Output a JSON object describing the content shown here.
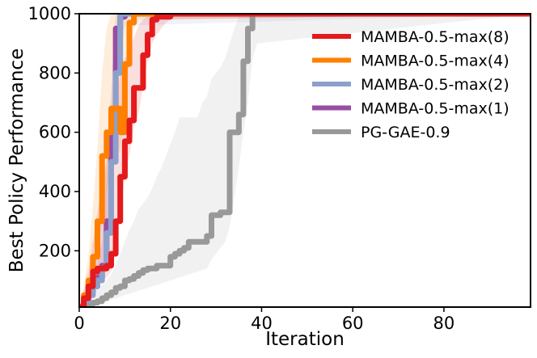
{
  "chart_data": {
    "type": "line",
    "title": "",
    "xlabel": "Iteration",
    "ylabel": "Best Policy Performance",
    "xlim": [
      0,
      99
    ],
    "ylim": [
      10,
      1000
    ],
    "xticks": [
      0,
      20,
      40,
      60,
      80
    ],
    "yticks": [
      200,
      400,
      600,
      800,
      1000
    ],
    "grid": false,
    "legend_position": "top-right",
    "series": [
      {
        "name": "MAMBA-0.5-max(8)",
        "color": "#e41a1c",
        "x": [
          0,
          1,
          2,
          3,
          4,
          5,
          6,
          7,
          8,
          9,
          10,
          11,
          12,
          13,
          14,
          15,
          16,
          17,
          18,
          19,
          20,
          99
        ],
        "y": [
          10,
          40,
          80,
          130,
          140,
          140,
          150,
          190,
          300,
          450,
          570,
          640,
          750,
          750,
          860,
          930,
          980,
          990,
          990,
          990,
          1000,
          1000
        ],
        "band_lower": [
          10,
          20,
          40,
          70,
          90,
          100,
          110,
          130,
          200,
          330,
          450,
          520,
          620,
          660,
          760,
          840,
          900,
          930,
          950,
          970,
          980,
          1000
        ],
        "band_upper": [
          10,
          60,
          130,
          230,
          330,
          420,
          510,
          600,
          700,
          800,
          850,
          880,
          920,
          960,
          980,
          990,
          995,
          1000,
          1000,
          1000,
          1000,
          1000
        ]
      },
      {
        "name": "MAMBA-0.5-max(4)",
        "color": "#ff7f00",
        "x": [
          0,
          1,
          2,
          3,
          4,
          5,
          6,
          7,
          8,
          9,
          10,
          11,
          12,
          13,
          99
        ],
        "y": [
          10,
          50,
          100,
          180,
          300,
          520,
          600,
          680,
          680,
          600,
          830,
          970,
          1000,
          1000,
          1000
        ],
        "band_lower": [
          10,
          30,
          60,
          100,
          180,
          300,
          400,
          480,
          520,
          540,
          680,
          850,
          950,
          980,
          1000
        ],
        "band_upper": [
          10,
          80,
          180,
          350,
          550,
          800,
          950,
          1000,
          1000,
          1000,
          1000,
          1000,
          1000,
          1000,
          1000
        ]
      },
      {
        "name": "MAMBA-0.5-max(2)",
        "color": "#8da0cb",
        "x": [
          0,
          1,
          2,
          3,
          4,
          5,
          6,
          7,
          8,
          9,
          10,
          99
        ],
        "y": [
          10,
          30,
          50,
          80,
          100,
          140,
          260,
          500,
          800,
          1000,
          1000,
          1000
        ],
        "band_lower": [
          10,
          20,
          30,
          50,
          70,
          100,
          180,
          350,
          600,
          850,
          960,
          1000
        ],
        "band_upper": [
          10,
          50,
          90,
          150,
          230,
          350,
          500,
          700,
          900,
          1000,
          1000,
          1000
        ]
      },
      {
        "name": "MAMBA-0.5-max(1)",
        "color": "#984ea3",
        "x": [
          0,
          1,
          2,
          3,
          4,
          5,
          6,
          7,
          8,
          9,
          10,
          99
        ],
        "y": [
          10,
          40,
          60,
          80,
          110,
          150,
          300,
          600,
          950,
          990,
          1000,
          1000
        ],
        "band_lower": [
          10,
          25,
          40,
          55,
          80,
          110,
          220,
          480,
          850,
          950,
          990,
          1000
        ],
        "band_upper": [
          10,
          55,
          80,
          110,
          160,
          230,
          420,
          750,
          1000,
          1000,
          1000,
          1000
        ]
      },
      {
        "name": "PG-GAE-0.9",
        "color": "#999999",
        "x": [
          0,
          2,
          3,
          4,
          5,
          6,
          7,
          8,
          9,
          10,
          11,
          12,
          13,
          14,
          15,
          16,
          17,
          18,
          19,
          20,
          21,
          22,
          23,
          24,
          25,
          26,
          27,
          28,
          29,
          30,
          31,
          32,
          33,
          34,
          35,
          36,
          37,
          38,
          39,
          99
        ],
        "y": [
          10,
          20,
          25,
          30,
          40,
          50,
          60,
          75,
          80,
          100,
          105,
          115,
          125,
          135,
          140,
          140,
          150,
          150,
          150,
          180,
          190,
          200,
          210,
          230,
          230,
          230,
          230,
          250,
          320,
          320,
          330,
          330,
          600,
          600,
          660,
          840,
          950,
          1000,
          1000,
          1000
        ],
        "band_lower": [
          10,
          15,
          15,
          20,
          25,
          30,
          35,
          40,
          45,
          50,
          55,
          60,
          65,
          70,
          75,
          80,
          85,
          90,
          95,
          100,
          105,
          110,
          115,
          120,
          125,
          130,
          135,
          140,
          170,
          190,
          210,
          230,
          280,
          380,
          480,
          600,
          700,
          850,
          900,
          1000
        ],
        "band_upper": [
          10,
          40,
          55,
          70,
          85,
          100,
          120,
          150,
          190,
          230,
          270,
          300,
          340,
          360,
          380,
          410,
          450,
          480,
          520,
          560,
          600,
          650,
          650,
          650,
          650,
          650,
          700,
          720,
          780,
          800,
          820,
          850,
          900,
          950,
          990,
          1000,
          1000,
          1000,
          1000,
          1000
        ]
      }
    ]
  }
}
